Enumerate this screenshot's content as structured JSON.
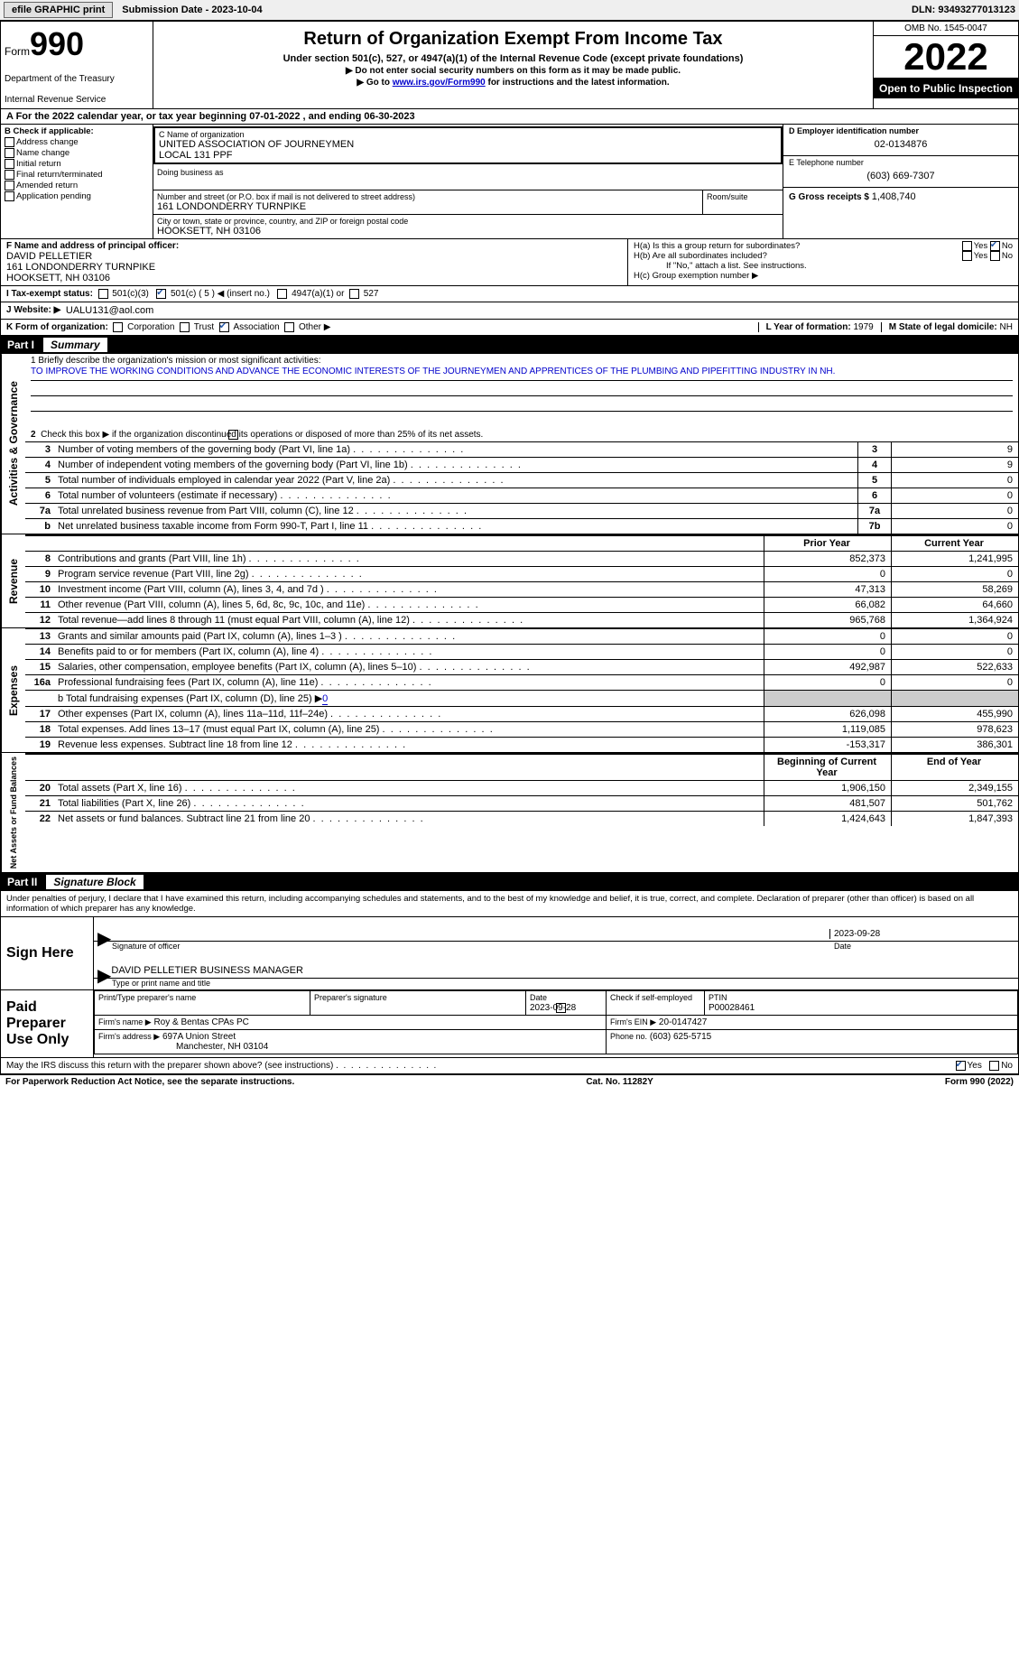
{
  "topbar": {
    "efile": "efile GRAPHIC print",
    "submission": "Submission Date - 2023-10-04",
    "dln": "DLN: 93493277013123"
  },
  "header": {
    "form_label": "Form",
    "form_num": "990",
    "dept": "Department of the Treasury",
    "irs": "Internal Revenue Service",
    "title": "Return of Organization Exempt From Income Tax",
    "subtitle": "Under section 501(c), 527, or 4947(a)(1) of the Internal Revenue Code (except private foundations)",
    "warn1": "▶ Do not enter social security numbers on this form as it may be made public.",
    "warn2_pre": "▶ Go to ",
    "warn2_link": "www.irs.gov/Form990",
    "warn2_post": " for instructions and the latest information.",
    "omb": "OMB No. 1545-0047",
    "year": "2022",
    "open": "Open to Public Inspection"
  },
  "sectionA": {
    "text": "A For the 2022 calendar year, or tax year beginning 07-01-2022    , and ending 06-30-2023"
  },
  "sectionB": {
    "title": "B Check if applicable:",
    "opts": [
      "Address change",
      "Name change",
      "Initial return",
      "Final return/terminated",
      "Amended return",
      "Application pending"
    ]
  },
  "sectionC": {
    "label_name": "C Name of organization",
    "name1": "UNITED ASSOCIATION OF JOURNEYMEN",
    "name2": "LOCAL 131 PPF",
    "dba_label": "Doing business as",
    "addr_label": "Number and street (or P.O. box if mail is not delivered to street address)",
    "room_label": "Room/suite",
    "addr": "161 LONDONDERRY TURNPIKE",
    "city_label": "City or town, state or province, country, and ZIP or foreign postal code",
    "city": "HOOKSETT, NH  03106"
  },
  "sectionD": {
    "label": "D Employer identification number",
    "val": "02-0134876"
  },
  "sectionE": {
    "label": "E Telephone number",
    "val": "(603) 669-7307"
  },
  "sectionG": {
    "label": "G Gross receipts $",
    "val": "1,408,740"
  },
  "sectionF": {
    "label": "F  Name and address of principal officer:",
    "name": "DAVID PELLETIER",
    "addr": "161 LONDONDERRY TURNPIKE",
    "city": "HOOKSETT, NH  03106"
  },
  "sectionH": {
    "a": "H(a)  Is this a group return for subordinates?",
    "b": "H(b)  Are all subordinates included?",
    "bnote": "If \"No,\" attach a list. See instructions.",
    "c": "H(c)  Group exemption number ▶"
  },
  "taxexempt": {
    "label": "I   Tax-exempt status:",
    "c3": "501(c)(3)",
    "c": "501(c) ( 5 ) ◀ (insert no.)",
    "a1": "4947(a)(1) or",
    "527": "527"
  },
  "website": {
    "label": "J   Website: ▶",
    "val": "UALU131@aol.com"
  },
  "sectionK": {
    "label": "K Form of organization:",
    "opts": [
      "Corporation",
      "Trust",
      "Association",
      "Other ▶"
    ]
  },
  "sectionL": {
    "label": "L Year of formation:",
    "val": "1979"
  },
  "sectionM": {
    "label": "M State of legal domicile:",
    "val": "NH"
  },
  "part1": {
    "num": "Part I",
    "title": "Summary",
    "line1_label": "1   Briefly describe the organization's mission or most significant activities:",
    "mission": "TO IMPROVE THE WORKING CONDITIONS AND ADVANCE THE ECONOMIC INTERESTS OF THE JOURNEYMEN AND APPRENTICES OF THE PLUMBING AND PIPEFITTING INDUSTRY IN NH.",
    "line2": "Check this box ▶        if the organization discontinued its operations or disposed of more than 25% of its net assets.",
    "vlabels": {
      "ag": "Activities & Governance",
      "rev": "Revenue",
      "exp": "Expenses",
      "net": "Net Assets or Fund Balances"
    },
    "rows_ag": [
      {
        "n": "3",
        "d": "Number of voting members of the governing body (Part VI, line 1a)",
        "box": "3",
        "v": "9"
      },
      {
        "n": "4",
        "d": "Number of independent voting members of the governing body (Part VI, line 1b)",
        "box": "4",
        "v": "9"
      },
      {
        "n": "5",
        "d": "Total number of individuals employed in calendar year 2022 (Part V, line 2a)",
        "box": "5",
        "v": "0"
      },
      {
        "n": "6",
        "d": "Total number of volunteers (estimate if necessary)",
        "box": "6",
        "v": "0"
      },
      {
        "n": "7a",
        "d": "Total unrelated business revenue from Part VIII, column (C), line 12",
        "box": "7a",
        "v": "0"
      },
      {
        "n": "b",
        "d": "Net unrelated business taxable income from Form 990-T, Part I, line 11",
        "box": "7b",
        "v": "0"
      }
    ],
    "twocol_head": {
      "prior": "Prior Year",
      "current": "Current Year"
    },
    "rows_rev": [
      {
        "n": "8",
        "d": "Contributions and grants (Part VIII, line 1h)",
        "p": "852,373",
        "c": "1,241,995"
      },
      {
        "n": "9",
        "d": "Program service revenue (Part VIII, line 2g)",
        "p": "0",
        "c": "0"
      },
      {
        "n": "10",
        "d": "Investment income (Part VIII, column (A), lines 3, 4, and 7d )",
        "p": "47,313",
        "c": "58,269"
      },
      {
        "n": "11",
        "d": "Other revenue (Part VIII, column (A), lines 5, 6d, 8c, 9c, 10c, and 11e)",
        "p": "66,082",
        "c": "64,660"
      },
      {
        "n": "12",
        "d": "Total revenue—add lines 8 through 11 (must equal Part VIII, column (A), line 12)",
        "p": "965,768",
        "c": "1,364,924"
      }
    ],
    "rows_exp": [
      {
        "n": "13",
        "d": "Grants and similar amounts paid (Part IX, column (A), lines 1–3 )",
        "p": "0",
        "c": "0"
      },
      {
        "n": "14",
        "d": "Benefits paid to or for members (Part IX, column (A), line 4)",
        "p": "0",
        "c": "0"
      },
      {
        "n": "15",
        "d": "Salaries, other compensation, employee benefits (Part IX, column (A), lines 5–10)",
        "p": "492,987",
        "c": "522,633"
      },
      {
        "n": "16a",
        "d": "Professional fundraising fees (Part IX, column (A), line 11e)",
        "p": "0",
        "c": "0"
      }
    ],
    "line16b_pre": "b   Total fundraising expenses (Part IX, column (D), line 25) ▶",
    "line16b_val": "0",
    "rows_exp2": [
      {
        "n": "17",
        "d": "Other expenses (Part IX, column (A), lines 11a–11d, 11f–24e)",
        "p": "626,098",
        "c": "455,990"
      },
      {
        "n": "18",
        "d": "Total expenses. Add lines 13–17 (must equal Part IX, column (A), line 25)",
        "p": "1,119,085",
        "c": "978,623"
      },
      {
        "n": "19",
        "d": "Revenue less expenses. Subtract line 18 from line 12",
        "p": "-153,317",
        "c": "386,301"
      }
    ],
    "twocol_head2": {
      "prior": "Beginning of Current Year",
      "current": "End of Year"
    },
    "rows_net": [
      {
        "n": "20",
        "d": "Total assets (Part X, line 16)",
        "p": "1,906,150",
        "c": "2,349,155"
      },
      {
        "n": "21",
        "d": "Total liabilities (Part X, line 26)",
        "p": "481,507",
        "c": "501,762"
      },
      {
        "n": "22",
        "d": "Net assets or fund balances. Subtract line 21 from line 20",
        "p": "1,424,643",
        "c": "1,847,393"
      }
    ]
  },
  "part2": {
    "num": "Part II",
    "title": "Signature Block",
    "decl": "Under penalties of perjury, I declare that I have examined this return, including accompanying schedules and statements, and to the best of my knowledge and belief, it is true, correct, and complete. Declaration of preparer (other than officer) is based on all information of which preparer has any knowledge.",
    "sign_here": "Sign Here",
    "sig_officer": "Signature of officer",
    "sig_date": "2023-09-28",
    "date_label": "Date",
    "printed_name": "DAVID PELLETIER  BUSINESS MANAGER",
    "printed_label": "Type or print name and title",
    "paid": "Paid Preparer Use Only",
    "prep_name_label": "Print/Type preparer's name",
    "prep_sig_label": "Preparer's signature",
    "prep_date_label": "Date",
    "prep_date": "2023-09-28",
    "check_self": "Check        if self-employed",
    "ptin_label": "PTIN",
    "ptin": "P00028461",
    "firm_name_label": "Firm's name    ▶",
    "firm_name": "Roy & Bentas CPAs PC",
    "firm_ein_label": "Firm's EIN ▶",
    "firm_ein": "20-0147427",
    "firm_addr_label": "Firm's address ▶",
    "firm_addr1": "697A Union Street",
    "firm_addr2": "Manchester, NH  03104",
    "phone_label": "Phone no.",
    "phone": "(603) 625-5715",
    "may_irs": "May the IRS discuss this return with the preparer shown above? (see instructions)",
    "yes": "Yes",
    "no": "No"
  },
  "footer": {
    "pra": "For Paperwork Reduction Act Notice, see the separate instructions.",
    "cat": "Cat. No. 11282Y",
    "form": "Form 990 (2022)"
  }
}
